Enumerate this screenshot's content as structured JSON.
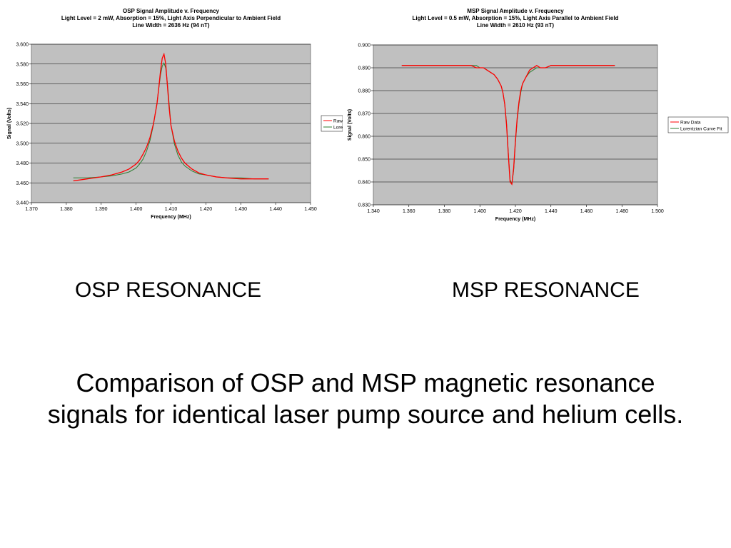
{
  "chart_data": [
    {
      "type": "line",
      "title": "OSP Signal Amplitude v. Frequency",
      "subtitle": [
        "Light Level = 2 mW, Absorption = 15%, Light Axis Perpendicular to Ambient Field",
        "Line Width = 2636 Hz (94 nT)"
      ],
      "xlabel": "Frequency (MHz)",
      "ylabel": "Signal (Volts)",
      "xlim": [
        1.37,
        1.45
      ],
      "ylim": [
        3.44,
        3.6
      ],
      "xticks": [
        "1.370",
        "1.380",
        "1.390",
        "1.400",
        "1.410",
        "1.420",
        "1.430",
        "1.440",
        "1.450"
      ],
      "yticks": [
        "3.440",
        "3.460",
        "3.480",
        "3.500",
        "3.520",
        "3.540",
        "3.560",
        "3.580",
        "3.600"
      ],
      "grid": true,
      "legend": "right",
      "series": [
        {
          "name": "Raw Data",
          "color": "#ff0000",
          "x": [
            1.382,
            1.386,
            1.39,
            1.393,
            1.396,
            1.398,
            1.4,
            1.401,
            1.402,
            1.403,
            1.404,
            1.405,
            1.406,
            1.4065,
            1.407,
            1.4075,
            1.408,
            1.4085,
            1.409,
            1.4095,
            1.41,
            1.411,
            1.412,
            1.413,
            1.414,
            1.416,
            1.418,
            1.42,
            1.423,
            1.426,
            1.43,
            1.434,
            1.438
          ],
          "y": [
            3.462,
            3.464,
            3.466,
            3.468,
            3.471,
            3.474,
            3.479,
            3.483,
            3.489,
            3.496,
            3.506,
            3.52,
            3.54,
            3.556,
            3.573,
            3.586,
            3.59,
            3.58,
            3.557,
            3.535,
            3.518,
            3.502,
            3.492,
            3.485,
            3.48,
            3.474,
            3.47,
            3.468,
            3.466,
            3.465,
            3.464,
            3.464,
            3.464
          ]
        },
        {
          "name": "Lorentzian Curve Fit",
          "color": "#2e7d32",
          "x": [
            1.382,
            1.386,
            1.39,
            1.393,
            1.396,
            1.398,
            1.4,
            1.401,
            1.402,
            1.403,
            1.404,
            1.405,
            1.406,
            1.4065,
            1.407,
            1.4075,
            1.408,
            1.4085,
            1.409,
            1.4095,
            1.41,
            1.411,
            1.412,
            1.413,
            1.414,
            1.416,
            1.418,
            1.42,
            1.423,
            1.426,
            1.43,
            1.434,
            1.438
          ],
          "y": [
            3.465,
            3.465,
            3.466,
            3.467,
            3.469,
            3.471,
            3.475,
            3.479,
            3.484,
            3.492,
            3.503,
            3.519,
            3.541,
            3.555,
            3.569,
            3.578,
            3.581,
            3.576,
            3.56,
            3.539,
            3.518,
            3.499,
            3.488,
            3.481,
            3.477,
            3.472,
            3.469,
            3.468,
            3.466,
            3.465,
            3.465,
            3.464,
            3.464
          ]
        }
      ]
    },
    {
      "type": "line",
      "title": "MSP Signal Amplitude v. Frequency",
      "subtitle": [
        "Light Level = 0.5 mW, Absorption = 15%, Light Axis Parallel to Ambient Field",
        "Line Width = 2610 Hz (93 nT)"
      ],
      "xlabel": "Frequency (MHz)",
      "ylabel": "Signal (Volts)",
      "xlim": [
        1.34,
        1.5
      ],
      "ylim": [
        0.83,
        0.9
      ],
      "xticks": [
        "1.340",
        "1.360",
        "1.380",
        "1.400",
        "1.420",
        "1.440",
        "1.460",
        "1.480",
        "1.500"
      ],
      "yticks": [
        "0.830",
        "0.840",
        "0.850",
        "0.860",
        "0.870",
        "0.880",
        "0.890",
        "0.900"
      ],
      "grid": true,
      "legend": "right",
      "series": [
        {
          "name": "Raw Data",
          "color": "#ff0000",
          "x": [
            1.356,
            1.37,
            1.385,
            1.395,
            1.398,
            1.4,
            1.402,
            1.404,
            1.406,
            1.408,
            1.41,
            1.412,
            1.413,
            1.414,
            1.415,
            1.416,
            1.417,
            1.418,
            1.419,
            1.42,
            1.421,
            1.422,
            1.423,
            1.424,
            1.426,
            1.428,
            1.43,
            1.432,
            1.434,
            1.437,
            1.44,
            1.46,
            1.476
          ],
          "y": [
            0.891,
            0.891,
            0.891,
            0.891,
            0.89,
            0.89,
            0.89,
            0.889,
            0.888,
            0.887,
            0.885,
            0.882,
            0.879,
            0.874,
            0.865,
            0.852,
            0.84,
            0.839,
            0.846,
            0.858,
            0.868,
            0.875,
            0.88,
            0.883,
            0.886,
            0.889,
            0.89,
            0.891,
            0.89,
            0.89,
            0.891,
            0.891,
            0.891
          ]
        },
        {
          "name": "Lorentzian Curve Fit",
          "color": "#2e7d32",
          "x": [
            1.356,
            1.37,
            1.385,
            1.395,
            1.398,
            1.4,
            1.402,
            1.404,
            1.406,
            1.408,
            1.41,
            1.412,
            1.413,
            1.414,
            1.415,
            1.416,
            1.417,
            1.418,
            1.419,
            1.42,
            1.421,
            1.422,
            1.423,
            1.424,
            1.426,
            1.428,
            1.43,
            1.432,
            1.434,
            1.437,
            1.44,
            1.46,
            1.476
          ],
          "y": [
            0.891,
            0.891,
            0.891,
            0.891,
            0.891,
            0.89,
            0.89,
            0.889,
            0.888,
            0.887,
            0.885,
            0.882,
            0.879,
            0.874,
            0.866,
            0.853,
            0.841,
            0.839,
            0.845,
            0.857,
            0.867,
            0.874,
            0.879,
            0.883,
            0.886,
            0.888,
            0.889,
            0.89,
            0.89,
            0.89,
            0.891,
            0.891,
            0.891
          ]
        }
      ]
    }
  ],
  "captions": {
    "osp": "OSP RESONANCE",
    "msp": "MSP RESONANCE"
  },
  "slide_text": {
    "line1": "Comparison of OSP and MSP magnetic resonance",
    "line2": "signals for identical laser pump source and helium cells."
  }
}
